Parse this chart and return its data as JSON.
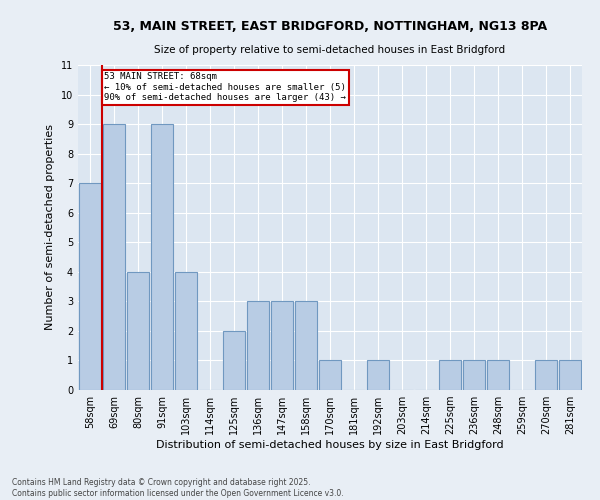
{
  "title": "53, MAIN STREET, EAST BRIDGFORD, NOTTINGHAM, NG13 8PA",
  "subtitle": "Size of property relative to semi-detached houses in East Bridgford",
  "xlabel": "Distribution of semi-detached houses by size in East Bridgford",
  "ylabel": "Number of semi-detached properties",
  "categories": [
    "58sqm",
    "69sqm",
    "80sqm",
    "91sqm",
    "103sqm",
    "114sqm",
    "125sqm",
    "136sqm",
    "147sqm",
    "158sqm",
    "170sqm",
    "181sqm",
    "192sqm",
    "203sqm",
    "214sqm",
    "225sqm",
    "236sqm",
    "248sqm",
    "259sqm",
    "270sqm",
    "281sqm"
  ],
  "values": [
    7,
    9,
    4,
    9,
    4,
    0,
    2,
    3,
    3,
    3,
    1,
    0,
    1,
    0,
    0,
    1,
    1,
    1,
    0,
    1,
    1
  ],
  "bar_color": "#b8cce4",
  "bar_edge_color": "#7098c0",
  "property_label": "53 MAIN STREET: 68sqm",
  "annotation_line1": "← 10% of semi-detached houses are smaller (5)",
  "annotation_line2": "90% of semi-detached houses are larger (43) →",
  "box_color": "#cc0000",
  "ylim": [
    0,
    11
  ],
  "yticks": [
    0,
    1,
    2,
    3,
    4,
    5,
    6,
    7,
    8,
    9,
    10,
    11
  ],
  "footnote": "Contains HM Land Registry data © Crown copyright and database right 2025.\nContains public sector information licensed under the Open Government Licence v3.0.",
  "bg_color": "#e8eef5",
  "plot_bg_color": "#dce6f1",
  "grid_color": "#ffffff"
}
